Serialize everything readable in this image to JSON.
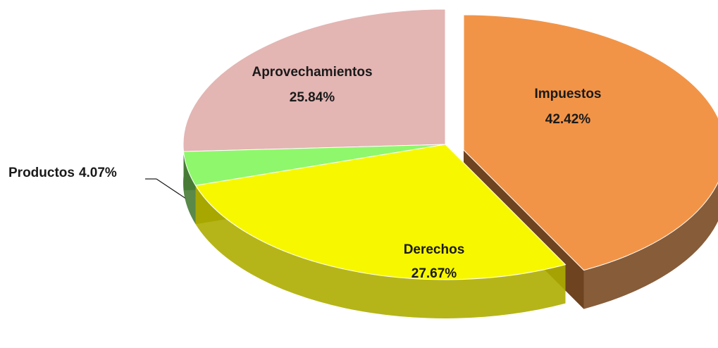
{
  "chart_data": {
    "type": "pie",
    "categories": [
      "Impuestos",
      "Derechos",
      "Productos",
      "Aprovechamientos"
    ],
    "values": [
      42.42,
      27.67,
      4.07,
      25.84
    ],
    "value_labels": [
      "42.42%",
      "27.67%",
      "4.07%",
      "25.84%"
    ],
    "colors": [
      "#f29447",
      "#f7f700",
      "#8ff76b",
      "#e3b5b3"
    ]
  }
}
